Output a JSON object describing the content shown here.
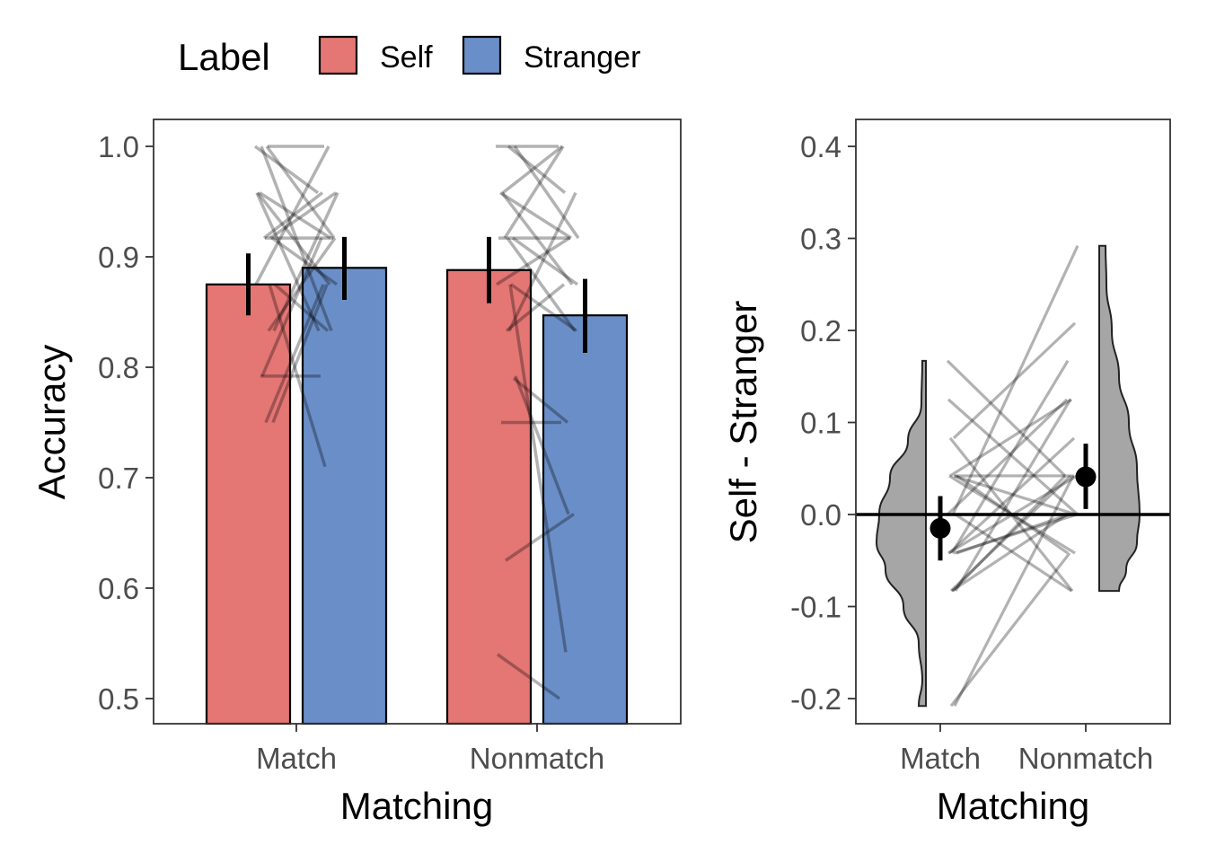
{
  "chart_data": [
    {
      "type": "bar",
      "title": "",
      "xlabel": "Matching",
      "ylabel": "Accuracy",
      "ylim": [
        0.475,
        1.024
      ],
      "yticks": [
        0.5,
        0.6,
        0.7,
        0.8,
        0.9,
        1.0
      ],
      "ytick_labels": [
        "0.5",
        "0.6",
        "0.7",
        "0.8",
        "0.9",
        "1.0"
      ],
      "categories": [
        "Match",
        "Nonmatch"
      ],
      "grid": false,
      "legend": {
        "title": "Label",
        "position": "top-left",
        "entries": [
          {
            "name": "Self",
            "color": "#E47674"
          },
          {
            "name": "Stranger",
            "color": "#6A8FC8"
          }
        ]
      },
      "series": [
        {
          "name": "Self",
          "color": "#E47674",
          "values": [
            0.875,
            0.888
          ],
          "error_low": [
            0.847,
            0.858
          ],
          "error_high": [
            0.903,
            0.918
          ]
        },
        {
          "name": "Stranger",
          "color": "#6A8FC8",
          "values": [
            0.89,
            0.847
          ],
          "error_low": [
            0.861,
            0.813
          ],
          "error_high": [
            0.918,
            0.88
          ]
        }
      ],
      "individual_lines": {
        "color": "#000000",
        "opacity": 0.3,
        "Match": [
          [
            1.0,
            0.958
          ],
          [
            1.0,
            1.0
          ],
          [
            0.958,
            0.917
          ],
          [
            0.917,
            0.875
          ],
          [
            0.917,
            0.958
          ],
          [
            0.875,
            1.0
          ],
          [
            0.833,
            0.917
          ],
          [
            0.792,
            0.792
          ],
          [
            0.75,
            0.875
          ],
          [
            0.917,
            0.917
          ],
          [
            0.958,
            0.833
          ],
          [
            0.875,
            0.71
          ],
          [
            1.0,
            0.833
          ],
          [
            0.833,
            0.958
          ],
          [
            0.75,
            0.875
          ],
          [
            0.958,
            0.875
          ],
          [
            0.917,
            0.958
          ],
          [
            0.792,
            0.917
          ],
          [
            0.875,
            0.833
          ],
          [
            1.0,
            0.917
          ]
        ],
        "Nonmatch": [
          [
            1.0,
            1.0
          ],
          [
            1.0,
            0.958
          ],
          [
            0.958,
            0.917
          ],
          [
            0.917,
            0.875
          ],
          [
            0.917,
            1.0
          ],
          [
            0.875,
            0.917
          ],
          [
            0.833,
            0.958
          ],
          [
            0.75,
            0.75
          ],
          [
            0.79,
            0.75
          ],
          [
            0.625,
            0.667
          ],
          [
            0.54,
            0.5
          ],
          [
            0.875,
            0.542
          ],
          [
            0.958,
            0.875
          ],
          [
            1.0,
            0.917
          ],
          [
            0.833,
            0.875
          ],
          [
            0.917,
            0.917
          ],
          [
            0.875,
            0.833
          ],
          [
            0.958,
            1.0
          ],
          [
            0.792,
            0.667
          ],
          [
            0.917,
            0.833
          ]
        ]
      }
    },
    {
      "type": "scatter",
      "subtype": "raincloud-difference",
      "title": "",
      "xlabel": "Matching",
      "ylabel": "Self - Stranger",
      "ylim": [
        -0.228,
        0.425
      ],
      "yticks": [
        -0.2,
        -0.1,
        0.0,
        0.1,
        0.2,
        0.3,
        0.4
      ],
      "ytick_labels": [
        "-0.2",
        "-0.1",
        "0.0",
        "0.1",
        "0.2",
        "0.3",
        "0.4"
      ],
      "categories": [
        "Match",
        "Nonmatch"
      ],
      "reference_line": 0.0,
      "grid": false,
      "points": [
        {
          "category": "Match",
          "mean": -0.015,
          "error_low": -0.05,
          "error_high": 0.02
        },
        {
          "category": "Nonmatch",
          "mean": 0.041,
          "error_low": 0.006,
          "error_high": 0.077
        }
      ],
      "violin_color": "#A6A6A6",
      "violins": {
        "Match": {
          "min": -0.208,
          "max": 0.167
        },
        "Nonmatch": {
          "min": -0.083,
          "max": 0.292
        }
      },
      "individual_lines": {
        "color": "#000000",
        "opacity": 0.3,
        "pairs": [
          [
            0.167,
            0.042
          ],
          [
            0.083,
            0.208
          ],
          [
            0.042,
            0.125
          ],
          [
            0.042,
            -0.042
          ],
          [
            0.0,
            0.292
          ],
          [
            -0.042,
            0.083
          ],
          [
            -0.083,
            0.125
          ],
          [
            -0.083,
            0.0
          ],
          [
            -0.042,
            0.042
          ],
          [
            -0.208,
            0.042
          ],
          [
            -0.208,
            -0.042
          ],
          [
            0.0,
            0.0
          ],
          [
            0.042,
            0.0
          ],
          [
            0.083,
            -0.083
          ],
          [
            -0.042,
            0.0
          ],
          [
            -0.083,
            0.042
          ],
          [
            0.042,
            -0.042
          ],
          [
            0.0,
            -0.083
          ],
          [
            -0.042,
            0.167
          ],
          [
            0.125,
            0.0
          ],
          [
            0.042,
            0.042
          ],
          [
            -0.083,
            0.042
          ],
          [
            0.0,
            0.125
          ],
          [
            -0.042,
            0.0
          ]
        ]
      }
    }
  ]
}
